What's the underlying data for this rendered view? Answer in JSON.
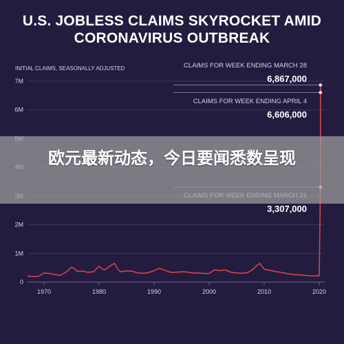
{
  "chart_data": {
    "type": "line",
    "title": "U.S. JOBLESS CLAIMS SKYROCKET AMID CORONAVIRUS OUTBREAK",
    "ylabel": "INITIAL CLAIMS, SEASONALLY ADJUSTED",
    "xlabel": "",
    "xlim": [
      1967,
      2021
    ],
    "ylim": [
      0,
      7000000
    ],
    "x_ticks": [
      1970,
      1980,
      1990,
      2000,
      2010,
      2020
    ],
    "y_ticks": [
      {
        "value": 0,
        "label": "0"
      },
      {
        "value": 1000000,
        "label": "1M"
      },
      {
        "value": 2000000,
        "label": "2M"
      },
      {
        "value": 3000000,
        "label": "3M"
      },
      {
        "value": 4000000,
        "label": "4M"
      },
      {
        "value": 5000000,
        "label": "5M"
      },
      {
        "value": 6000000,
        "label": "6M"
      },
      {
        "value": 7000000,
        "label": "7M"
      }
    ],
    "grid": true,
    "colors": {
      "line": "#e0474c",
      "grid": "#3d3560",
      "text": "#d6d3e6",
      "annotation_line": "#8a85a3"
    },
    "series": [
      {
        "name": "",
        "x": [
          1967,
          1968,
          1969,
          1970,
          1971,
          1972,
          1973,
          1974,
          1975,
          1975.5,
          1976,
          1977,
          1978,
          1979,
          1980,
          1980.5,
          1981,
          1982,
          1982.8,
          1983.5,
          1984,
          1985,
          1986,
          1987,
          1988,
          1989,
          1990,
          1991,
          1992,
          1993,
          1994,
          1995,
          1996,
          1997,
          1998,
          1999,
          2000,
          2001,
          2002,
          2003,
          2004,
          2005,
          2006,
          2007,
          2008,
          2008.7,
          2009.2,
          2010,
          2011,
          2012,
          2013,
          2014,
          2015,
          2016,
          2017,
          2018,
          2019,
          2020.0,
          2020.21,
          2020.23,
          2020.25
        ],
        "y": [
          210000,
          195000,
          200000,
          320000,
          300000,
          260000,
          240000,
          350000,
          520000,
          460000,
          380000,
          380000,
          340000,
          360000,
          550000,
          470000,
          420000,
          560000,
          650000,
          420000,
          360000,
          390000,
          380000,
          320000,
          310000,
          330000,
          400000,
          480000,
          410000,
          340000,
          340000,
          360000,
          350000,
          320000,
          320000,
          300000,
          300000,
          430000,
          400000,
          420000,
          340000,
          320000,
          310000,
          330000,
          450000,
          580000,
          650000,
          450000,
          410000,
          370000,
          340000,
          300000,
          270000,
          260000,
          240000,
          220000,
          215000,
          215000,
          3307000,
          6867000,
          6606000
        ]
      }
    ],
    "annotations": [
      {
        "label": "CLAIMS FOR WEEK ENDING MARCH 28",
        "value_label": "6,867,000",
        "value": 6867000
      },
      {
        "label": "CLAIMS FOR WEEK ENDING APRIL 4",
        "value_label": "6,606,000",
        "value": 6606000
      },
      {
        "label": "CLAIMS FOR WEEK ENDING MARCH 21",
        "value_label": "3,307,000",
        "value": 3307000
      }
    ]
  },
  "overlay": {
    "text": "欧元最新动态，今日要闻悉数呈现"
  }
}
